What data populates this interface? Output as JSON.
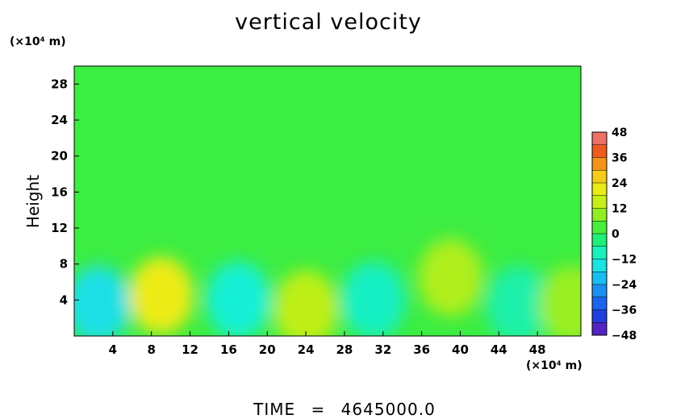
{
  "chart_data": {
    "type": "heatmap",
    "title": "vertical velocity",
    "ylabel": "Height",
    "xlabel": "",
    "x_unit": "(×10⁴ m)",
    "y_unit": "(×10⁴ m)",
    "xlim": [
      0,
      52.5
    ],
    "ylim": [
      0,
      30
    ],
    "x_ticks": [
      4,
      8,
      12,
      16,
      20,
      24,
      28,
      32,
      36,
      40,
      44,
      48
    ],
    "y_ticks": [
      4,
      8,
      12,
      16,
      20,
      24,
      28
    ],
    "colorbar": {
      "ticks": [
        48,
        36,
        24,
        12,
        0,
        -12,
        -24,
        -36,
        -48
      ],
      "range": [
        -48,
        48
      ]
    },
    "field_features": [
      {
        "x": 2.5,
        "y": 3.5,
        "value": -16
      },
      {
        "x": 9,
        "y": 4.5,
        "value": 22
      },
      {
        "x": 17,
        "y": 4,
        "value": -12
      },
      {
        "x": 24,
        "y": 3,
        "value": 14
      },
      {
        "x": 31,
        "y": 4,
        "value": -10
      },
      {
        "x": 39,
        "y": 6.5,
        "value": 12
      },
      {
        "x": 46,
        "y": 3.5,
        "value": -7
      },
      {
        "x": 51.5,
        "y": 3.5,
        "value": 10
      }
    ],
    "background_value": 2,
    "footer": {
      "label": "TIME",
      "eq": "=",
      "value": "4645000.0"
    }
  }
}
